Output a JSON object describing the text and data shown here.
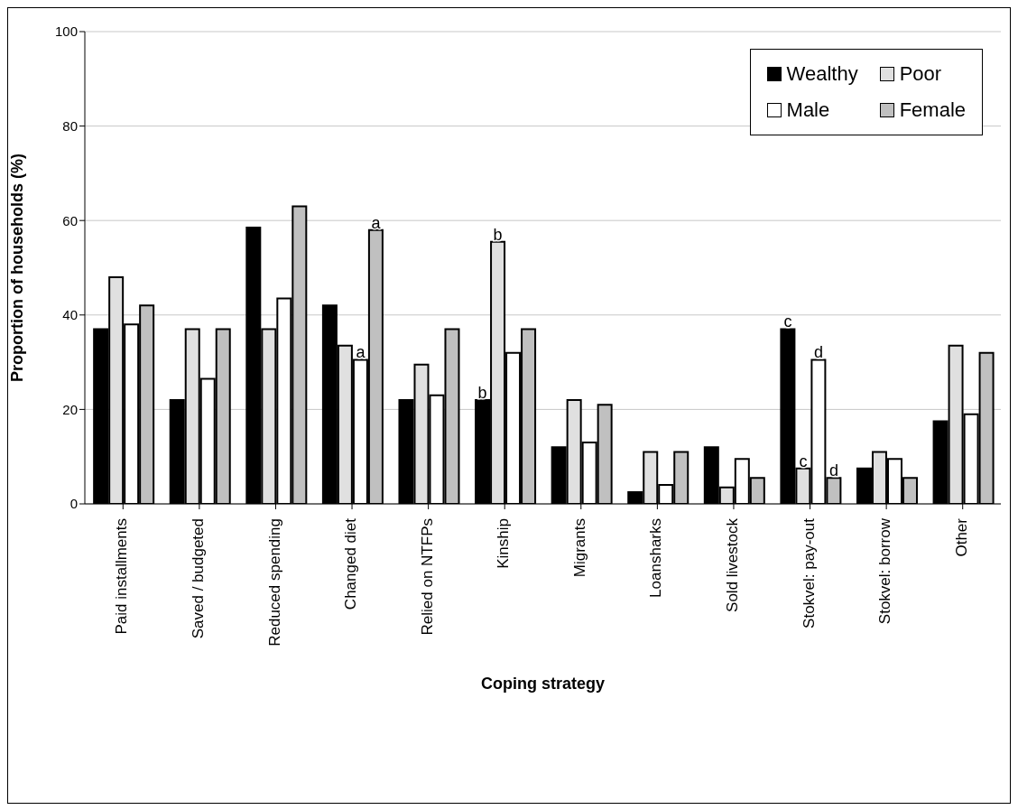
{
  "chart_data": {
    "type": "bar",
    "xlabel": "Coping strategy",
    "ylabel": "Proportion of households (%)",
    "categories": [
      "Paid installments",
      "Saved / budgeted",
      "Reduced spending",
      "Changed diet",
      "Relied on NTFPs",
      "Kinship",
      "Migrants",
      "Loansharks",
      "Sold livestock",
      "Stokvel: pay-out",
      "Stokvel: borrow",
      "Other"
    ],
    "series": [
      {
        "name": "Wealthy",
        "color": "#000000",
        "values": [
          37,
          22,
          58.5,
          42,
          22,
          22,
          12,
          2.5,
          12,
          37,
          7.5,
          17.5
        ],
        "value_labels": [
          null,
          null,
          null,
          null,
          null,
          "b",
          null,
          null,
          null,
          "c",
          null,
          null
        ]
      },
      {
        "name": "Poor",
        "color": "#e0e0e0",
        "values": [
          48,
          37,
          37,
          33.5,
          29.5,
          55.5,
          22,
          11,
          3.5,
          7.5,
          11,
          33.5
        ],
        "value_labels": [
          null,
          null,
          null,
          null,
          null,
          "b",
          null,
          null,
          null,
          "c",
          null,
          null
        ]
      },
      {
        "name": "Male",
        "color": "#ffffff",
        "values": [
          38,
          26.5,
          43.5,
          30.5,
          23,
          32,
          13,
          4,
          9.5,
          30.5,
          9.5,
          19
        ],
        "value_labels": [
          null,
          null,
          null,
          "a",
          null,
          null,
          null,
          null,
          null,
          "d",
          null,
          null
        ]
      },
      {
        "name": "Female",
        "color": "#c0c0c0",
        "values": [
          42,
          37,
          63,
          58,
          37,
          37,
          21,
          11,
          5.5,
          5.5,
          5.5,
          32
        ],
        "value_labels": [
          null,
          null,
          null,
          "a",
          null,
          null,
          null,
          null,
          null,
          "d",
          null,
          null
        ]
      }
    ],
    "ylim": [
      0,
      100
    ],
    "yticks": [
      0,
      20,
      40,
      60,
      80,
      100
    ],
    "grid": "y",
    "legend": "top right"
  }
}
